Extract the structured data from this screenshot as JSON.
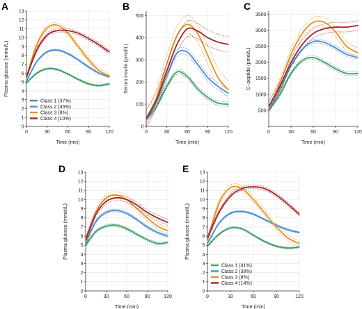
{
  "colors": {
    "Class 1": "#3f9e67",
    "Class 2": "#4a90d9",
    "Class 3": "#e69320",
    "Class 4": "#a3282c"
  },
  "chart_data": [
    {
      "panel": "A",
      "type": "line",
      "xlabel": "Time (min)",
      "ylabel": "Plasma glucose (mmol/L)",
      "xticks": [
        0,
        30,
        60,
        90,
        120
      ],
      "xlim": [
        0,
        120
      ],
      "yticks": [
        0,
        1,
        2,
        3,
        4,
        5,
        6,
        7,
        8,
        9,
        10,
        11,
        12,
        13
      ],
      "ylim": [
        0,
        13
      ],
      "legend": "bottom-left",
      "grid": true,
      "series": [
        {
          "name": "Class 1 (37%)",
          "class": "Class 1",
          "x": [
            0,
            15,
            30,
            45,
            60,
            75,
            90,
            105,
            120
          ],
          "y": [
            4.9,
            6.0,
            6.5,
            6.4,
            5.9,
            5.3,
            4.8,
            4.6,
            4.8
          ],
          "band": 0.1
        },
        {
          "name": "Class 2 (45%)",
          "class": "Class 2",
          "x": [
            0,
            15,
            30,
            45,
            60,
            75,
            90,
            105,
            120
          ],
          "y": [
            5.1,
            7.3,
            8.4,
            8.6,
            8.2,
            7.5,
            6.7,
            6.0,
            5.6
          ],
          "band": 0.1
        },
        {
          "name": "Class 3 (8%)",
          "class": "Class 3",
          "x": [
            0,
            15,
            30,
            45,
            60,
            75,
            90,
            105,
            120
          ],
          "y": [
            5.5,
            9.2,
            11.1,
            11.4,
            10.5,
            9.0,
            7.5,
            6.3,
            5.7
          ],
          "band": 0.25
        },
        {
          "name": "Class 4 (10%)",
          "class": "Class 4",
          "x": [
            0,
            15,
            30,
            45,
            60,
            75,
            90,
            105,
            120
          ],
          "y": [
            5.6,
            8.6,
            10.3,
            10.8,
            10.8,
            10.5,
            9.9,
            9.2,
            8.4
          ],
          "band": 0.2
        }
      ]
    },
    {
      "panel": "B",
      "type": "line",
      "xlabel": "Time (min)",
      "ylabel": "Serum insulin (pmol/L)",
      "xticks": [
        0,
        30,
        60,
        90,
        120
      ],
      "xlim": [
        0,
        120
      ],
      "yticks": [
        0,
        100,
        200,
        300,
        400,
        500
      ],
      "ylim": [
        0,
        520
      ],
      "grid": true,
      "series": [
        {
          "class": "Class 1",
          "x": [
            0,
            15,
            30,
            45,
            60,
            75,
            90,
            105,
            120
          ],
          "y": [
            30,
            90,
            180,
            245,
            225,
            170,
            130,
            105,
            100
          ],
          "band": 10
        },
        {
          "class": "Class 2",
          "x": [
            0,
            15,
            30,
            45,
            60,
            75,
            90,
            105,
            120
          ],
          "y": [
            30,
            110,
            230,
            330,
            335,
            280,
            220,
            180,
            150
          ],
          "band": 15
        },
        {
          "class": "Class 3",
          "x": [
            0,
            15,
            30,
            45,
            60,
            75,
            90,
            105,
            120
          ],
          "y": [
            35,
            130,
            280,
            410,
            460,
            420,
            320,
            220,
            165
          ],
          "band": 40
        },
        {
          "class": "Class 4",
          "x": [
            0,
            15,
            30,
            45,
            60,
            75,
            90,
            105,
            120
          ],
          "y": [
            35,
            120,
            250,
            370,
            440,
            430,
            400,
            380,
            370
          ],
          "band": 35
        }
      ]
    },
    {
      "panel": "C",
      "type": "line",
      "xlabel": "Time (min)",
      "ylabel": "C–peptide (pmol/L)",
      "xticks": [
        0,
        30,
        60,
        90,
        120
      ],
      "xlim": [
        0,
        120
      ],
      "yticks": [
        500,
        1000,
        1500,
        2000,
        2500,
        3000,
        3500
      ],
      "ylim": [
        0,
        3600
      ],
      "grid": true,
      "series": [
        {
          "class": "Class 1",
          "x": [
            0,
            15,
            30,
            45,
            60,
            75,
            90,
            105,
            120
          ],
          "y": [
            500,
            1000,
            1650,
            2050,
            2150,
            2000,
            1800,
            1650,
            1650
          ],
          "band": 60
        },
        {
          "class": "Class 2",
          "x": [
            0,
            15,
            30,
            45,
            60,
            75,
            90,
            105,
            120
          ],
          "y": [
            520,
            1150,
            1900,
            2400,
            2650,
            2620,
            2450,
            2250,
            2150
          ],
          "band": 60
        },
        {
          "class": "Class 3",
          "x": [
            0,
            15,
            30,
            45,
            60,
            75,
            90,
            105,
            120
          ],
          "y": [
            600,
            1350,
            2250,
            2900,
            3250,
            3250,
            2950,
            2500,
            2300
          ],
          "band": 150
        },
        {
          "class": "Class 4",
          "x": [
            0,
            15,
            30,
            45,
            60,
            75,
            90,
            105,
            120
          ],
          "y": [
            620,
            1250,
            2000,
            2550,
            2900,
            3050,
            3100,
            3100,
            3150
          ],
          "band": 150
        }
      ]
    },
    {
      "panel": "D",
      "type": "line",
      "xlabel": "Time (min)",
      "ylabel": "Plasma glucose (mmol/L)",
      "xticks": [
        0,
        30,
        60,
        90,
        120
      ],
      "xlim": [
        0,
        120
      ],
      "yticks": [
        0,
        1,
        2,
        3,
        4,
        5,
        6,
        7,
        8,
        9,
        10,
        11,
        12,
        13
      ],
      "ylim": [
        0,
        13
      ],
      "grid": true,
      "series": [
        {
          "class": "Class 1",
          "x": [
            0,
            15,
            30,
            45,
            60,
            75,
            90,
            105,
            120
          ],
          "y": [
            5.0,
            6.5,
            7.1,
            7.2,
            6.8,
            6.2,
            5.6,
            5.2,
            5.3
          ],
          "band": 0.15
        },
        {
          "class": "Class 2",
          "x": [
            0,
            15,
            30,
            45,
            60,
            75,
            90,
            105,
            120
          ],
          "y": [
            5.2,
            7.6,
            8.6,
            8.8,
            8.5,
            7.8,
            7.0,
            6.4,
            6.0
          ],
          "band": 0.15
        },
        {
          "class": "Class 3",
          "x": [
            0,
            15,
            30,
            45,
            60,
            75,
            90,
            105,
            120
          ],
          "y": [
            5.4,
            8.6,
            10.2,
            10.5,
            10.0,
            9.0,
            8.0,
            7.1,
            6.6
          ],
          "band": 0.35
        },
        {
          "class": "Class 4",
          "x": [
            0,
            15,
            30,
            45,
            60,
            75,
            90,
            105,
            120
          ],
          "y": [
            5.6,
            8.4,
            9.8,
            10.2,
            10.0,
            9.4,
            8.6,
            8.0,
            7.5
          ],
          "band": 0.3
        }
      ]
    },
    {
      "panel": "E",
      "type": "line",
      "xlabel": "Time (min)",
      "ylabel": "Plasma glucose (mmol/L)",
      "xticks": [
        0,
        30,
        60,
        90,
        120
      ],
      "xlim": [
        0,
        120
      ],
      "yticks": [
        0,
        1,
        2,
        3,
        4,
        5,
        6,
        7,
        8,
        9,
        10,
        11,
        12,
        13
      ],
      "ylim": [
        0,
        13
      ],
      "legend": "bottom-left",
      "grid": true,
      "series": [
        {
          "name": "Class 1 (41%)",
          "class": "Class 1",
          "x": [
            0,
            15,
            30,
            45,
            60,
            75,
            90,
            105,
            120
          ],
          "y": [
            4.9,
            6.2,
            6.9,
            6.8,
            6.1,
            5.4,
            4.9,
            4.7,
            4.8
          ],
          "band": 0.1
        },
        {
          "name": "Class 2 (38%)",
          "class": "Class 2",
          "x": [
            0,
            15,
            30,
            45,
            60,
            75,
            90,
            105,
            120
          ],
          "y": [
            5.2,
            7.4,
            8.5,
            8.7,
            8.4,
            7.8,
            7.2,
            6.7,
            6.4
          ],
          "band": 0.1
        },
        {
          "name": "Class 3 (8%)",
          "class": "Class 3",
          "x": [
            0,
            15,
            30,
            45,
            60,
            75,
            90,
            105,
            120
          ],
          "y": [
            5.6,
            9.6,
            11.3,
            11.2,
            10.0,
            8.5,
            7.0,
            5.8,
            5.2
          ],
          "band": 0.3
        },
        {
          "name": "Class 4 (14%)",
          "class": "Class 4",
          "x": [
            0,
            15,
            30,
            45,
            60,
            75,
            90,
            105,
            120
          ],
          "y": [
            5.8,
            8.6,
            10.4,
            11.2,
            11.4,
            11.2,
            10.5,
            9.5,
            8.4
          ],
          "band": 0.2
        }
      ]
    }
  ]
}
